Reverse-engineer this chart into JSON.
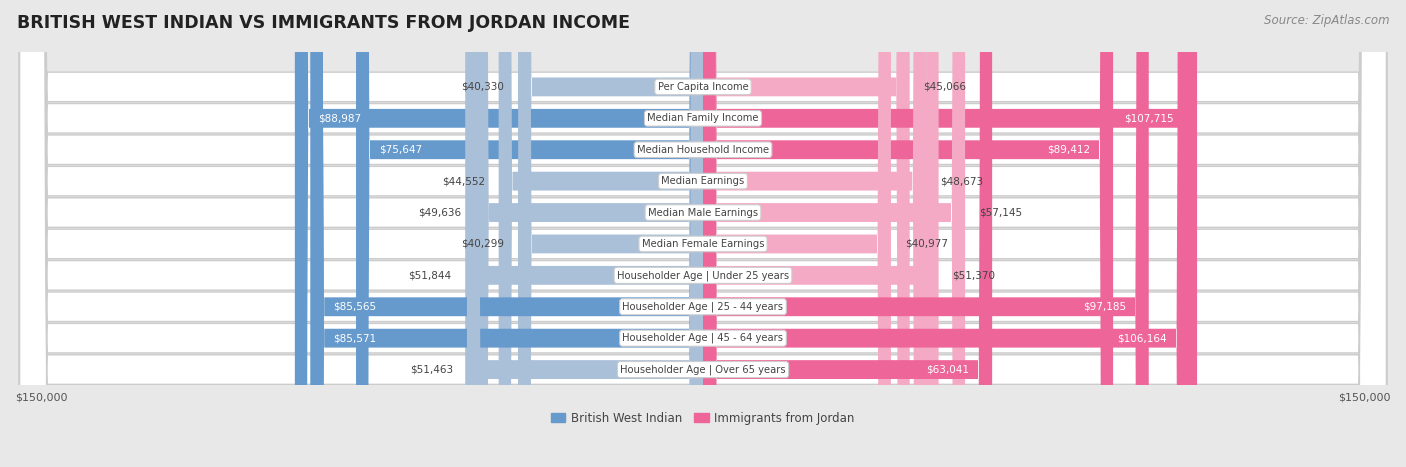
{
  "title": "BRITISH WEST INDIAN VS IMMIGRANTS FROM JORDAN INCOME",
  "source": "Source: ZipAtlas.com",
  "categories": [
    "Per Capita Income",
    "Median Family Income",
    "Median Household Income",
    "Median Earnings",
    "Median Male Earnings",
    "Median Female Earnings",
    "Householder Age | Under 25 years",
    "Householder Age | 25 - 44 years",
    "Householder Age | 45 - 64 years",
    "Householder Age | Over 65 years"
  ],
  "british_values": [
    40330,
    88987,
    75647,
    44552,
    49636,
    40299,
    51844,
    85565,
    85571,
    51463
  ],
  "jordan_values": [
    45066,
    107715,
    89412,
    48673,
    57145,
    40977,
    51370,
    97185,
    106164,
    63041
  ],
  "british_color_dark": "#6699cc",
  "british_color_light": "#aabfd8",
  "jordan_color_dark": "#ee6699",
  "jordan_color_light": "#f4aac4",
  "max_value": 150000,
  "brit_large_thresh": 60000,
  "jord_large_thresh": 60000,
  "legend_british": "British West Indian",
  "legend_jordan": "Immigrants from Jordan",
  "bg_color": "#e8e8e8",
  "row_bg": "#ffffff",
  "row_border": "#cccccc"
}
